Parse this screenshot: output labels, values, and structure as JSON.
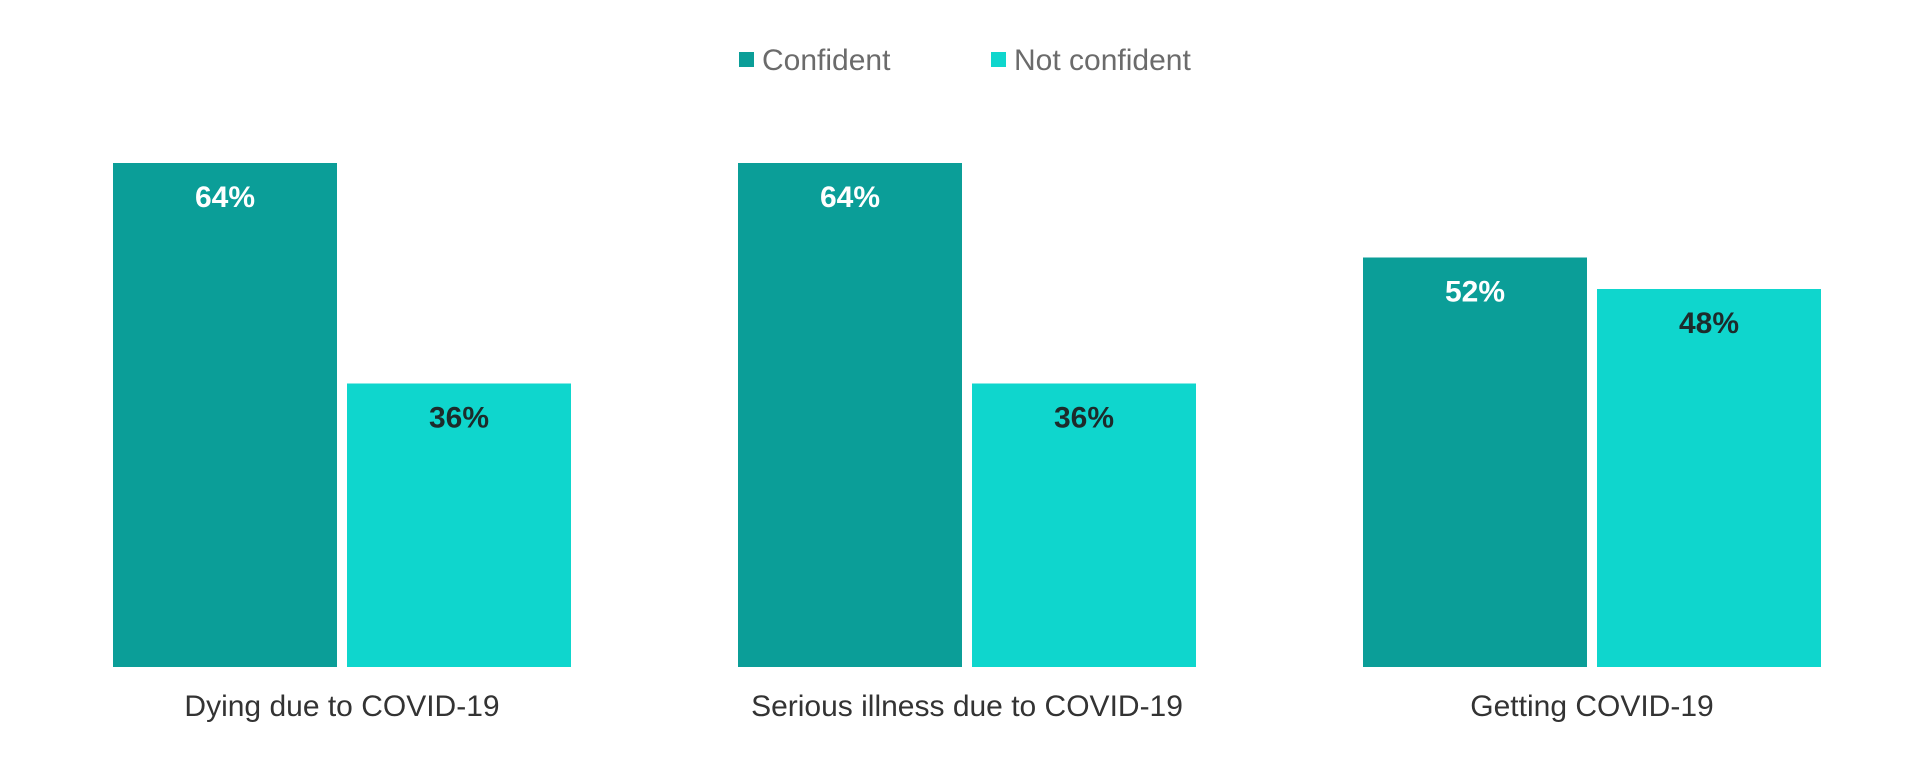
{
  "chart_data": {
    "type": "bar",
    "categories": [
      "Dying due to COVID-19",
      "Serious illness due to COVID-19",
      "Getting COVID-19"
    ],
    "series": [
      {
        "name": "Confident",
        "values": [
          64,
          64,
          52
        ],
        "labels": [
          "64%",
          "64%",
          "52%"
        ],
        "color": "#0b9e98",
        "label_color": "#ffffff"
      },
      {
        "name": "Not confident",
        "values": [
          36,
          36,
          48
        ],
        "labels": [
          "36%",
          "36%",
          "48%"
        ],
        "color": "#0fd6cd",
        "label_color": "#1d2b2b"
      }
    ],
    "value_unit": "%",
    "ylim": [
      0,
      64
    ],
    "grid": false,
    "y_axis_visible": false,
    "legend_position": "top-center",
    "title": "",
    "xlabel": "",
    "ylabel": ""
  }
}
